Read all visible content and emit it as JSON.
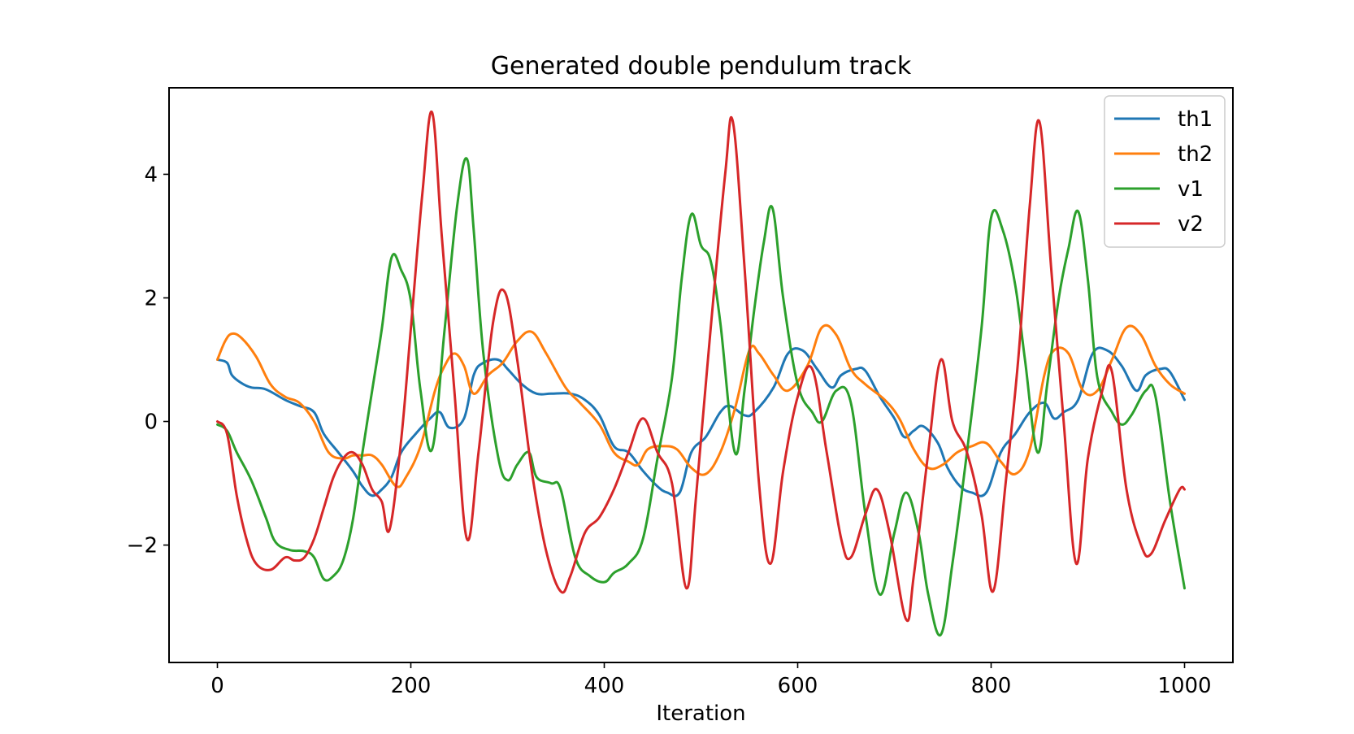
{
  "chart_data": {
    "type": "line",
    "title": "Generated double pendulum track",
    "xlabel": "Iteration",
    "ylabel": "",
    "xlim": [
      -50,
      1050
    ],
    "ylim": [
      -3.9,
      5.4
    ],
    "xticks": [
      0,
      200,
      400,
      600,
      800,
      1000
    ],
    "yticks": [
      -2,
      0,
      2,
      4
    ],
    "ytick_labels": [
      "−2",
      "0",
      "2",
      "4"
    ],
    "grid": false,
    "legend_position": "top-right",
    "series": [
      {
        "name": "th1",
        "color": "#1f77b4",
        "points": [
          [
            0,
            1.0
          ],
          [
            10,
            0.95
          ],
          [
            15,
            0.75
          ],
          [
            25,
            0.62
          ],
          [
            35,
            0.55
          ],
          [
            50,
            0.52
          ],
          [
            70,
            0.35
          ],
          [
            85,
            0.25
          ],
          [
            100,
            0.15
          ],
          [
            110,
            -0.2
          ],
          [
            125,
            -0.5
          ],
          [
            140,
            -0.8
          ],
          [
            150,
            -1.05
          ],
          [
            160,
            -1.2
          ],
          [
            170,
            -1.1
          ],
          [
            180,
            -0.9
          ],
          [
            190,
            -0.5
          ],
          [
            205,
            -0.2
          ],
          [
            220,
            0.05
          ],
          [
            230,
            0.15
          ],
          [
            240,
            -0.1
          ],
          [
            255,
            0.05
          ],
          [
            265,
            0.75
          ],
          [
            275,
            0.95
          ],
          [
            290,
            1.0
          ],
          [
            300,
            0.85
          ],
          [
            315,
            0.6
          ],
          [
            330,
            0.45
          ],
          [
            345,
            0.45
          ],
          [
            365,
            0.45
          ],
          [
            380,
            0.35
          ],
          [
            395,
            0.1
          ],
          [
            410,
            -0.4
          ],
          [
            425,
            -0.5
          ],
          [
            440,
            -0.8
          ],
          [
            455,
            -1.05
          ],
          [
            465,
            -1.15
          ],
          [
            478,
            -1.15
          ],
          [
            490,
            -0.5
          ],
          [
            505,
            -0.25
          ],
          [
            520,
            0.15
          ],
          [
            530,
            0.25
          ],
          [
            545,
            0.1
          ],
          [
            555,
            0.15
          ],
          [
            575,
            0.55
          ],
          [
            590,
            1.1
          ],
          [
            605,
            1.15
          ],
          [
            620,
            0.85
          ],
          [
            635,
            0.55
          ],
          [
            645,
            0.75
          ],
          [
            660,
            0.85
          ],
          [
            670,
            0.82
          ],
          [
            685,
            0.4
          ],
          [
            700,
            0.05
          ],
          [
            710,
            -0.25
          ],
          [
            720,
            -0.15
          ],
          [
            730,
            -0.08
          ],
          [
            745,
            -0.35
          ],
          [
            755,
            -0.75
          ],
          [
            768,
            -1.05
          ],
          [
            780,
            -1.15
          ],
          [
            795,
            -1.15
          ],
          [
            810,
            -0.5
          ],
          [
            825,
            -0.2
          ],
          [
            840,
            0.15
          ],
          [
            855,
            0.3
          ],
          [
            865,
            0.05
          ],
          [
            875,
            0.15
          ],
          [
            890,
            0.35
          ],
          [
            905,
            1.1
          ],
          [
            920,
            1.15
          ],
          [
            935,
            0.9
          ],
          [
            950,
            0.5
          ],
          [
            960,
            0.75
          ],
          [
            975,
            0.85
          ],
          [
            985,
            0.8
          ],
          [
            1000,
            0.35
          ]
        ]
      },
      {
        "name": "th2",
        "color": "#ff7f0e",
        "points": [
          [
            0,
            1.0
          ],
          [
            8,
            1.3
          ],
          [
            15,
            1.42
          ],
          [
            25,
            1.35
          ],
          [
            40,
            1.05
          ],
          [
            55,
            0.6
          ],
          [
            70,
            0.4
          ],
          [
            85,
            0.3
          ],
          [
            100,
            0.0
          ],
          [
            115,
            -0.5
          ],
          [
            130,
            -0.6
          ],
          [
            140,
            -0.55
          ],
          [
            150,
            -0.55
          ],
          [
            160,
            -0.55
          ],
          [
            170,
            -0.7
          ],
          [
            185,
            -1.05
          ],
          [
            195,
            -0.9
          ],
          [
            210,
            -0.4
          ],
          [
            225,
            0.5
          ],
          [
            235,
            0.9
          ],
          [
            245,
            1.1
          ],
          [
            255,
            0.9
          ],
          [
            265,
            0.45
          ],
          [
            280,
            0.75
          ],
          [
            295,
            0.95
          ],
          [
            310,
            1.3
          ],
          [
            325,
            1.45
          ],
          [
            340,
            1.1
          ],
          [
            360,
            0.55
          ],
          [
            375,
            0.3
          ],
          [
            395,
            -0.05
          ],
          [
            410,
            -0.5
          ],
          [
            425,
            -0.65
          ],
          [
            435,
            -0.7
          ],
          [
            445,
            -0.45
          ],
          [
            460,
            -0.4
          ],
          [
            475,
            -0.45
          ],
          [
            490,
            -0.75
          ],
          [
            505,
            -0.85
          ],
          [
            520,
            -0.5
          ],
          [
            535,
            0.2
          ],
          [
            550,
            1.15
          ],
          [
            560,
            1.1
          ],
          [
            575,
            0.75
          ],
          [
            590,
            0.5
          ],
          [
            610,
            0.9
          ],
          [
            625,
            1.52
          ],
          [
            640,
            1.4
          ],
          [
            655,
            0.85
          ],
          [
            670,
            0.6
          ],
          [
            690,
            0.35
          ],
          [
            705,
            0.05
          ],
          [
            720,
            -0.45
          ],
          [
            735,
            -0.75
          ],
          [
            750,
            -0.7
          ],
          [
            765,
            -0.5
          ],
          [
            780,
            -0.4
          ],
          [
            795,
            -0.35
          ],
          [
            810,
            -0.65
          ],
          [
            825,
            -0.85
          ],
          [
            840,
            -0.45
          ],
          [
            855,
            0.75
          ],
          [
            865,
            1.15
          ],
          [
            880,
            1.1
          ],
          [
            895,
            0.5
          ],
          [
            910,
            0.5
          ],
          [
            925,
            1.0
          ],
          [
            940,
            1.52
          ],
          [
            955,
            1.4
          ],
          [
            970,
            0.9
          ],
          [
            985,
            0.6
          ],
          [
            1000,
            0.45
          ]
        ]
      },
      {
        "name": "v1",
        "color": "#2ca02c",
        "points": [
          [
            0,
            -0.05
          ],
          [
            10,
            -0.15
          ],
          [
            20,
            -0.5
          ],
          [
            35,
            -0.95
          ],
          [
            50,
            -1.55
          ],
          [
            60,
            -1.95
          ],
          [
            75,
            -2.08
          ],
          [
            90,
            -2.1
          ],
          [
            100,
            -2.2
          ],
          [
            110,
            -2.55
          ],
          [
            120,
            -2.5
          ],
          [
            130,
            -2.25
          ],
          [
            140,
            -1.6
          ],
          [
            150,
            -0.5
          ],
          [
            160,
            0.5
          ],
          [
            170,
            1.5
          ],
          [
            180,
            2.65
          ],
          [
            190,
            2.45
          ],
          [
            200,
            1.95
          ],
          [
            210,
            0.5
          ],
          [
            222,
            -0.45
          ],
          [
            235,
            1.5
          ],
          [
            248,
            3.5
          ],
          [
            258,
            4.25
          ],
          [
            265,
            3.1
          ],
          [
            275,
            1.1
          ],
          [
            290,
            -0.55
          ],
          [
            300,
            -0.95
          ],
          [
            310,
            -0.7
          ],
          [
            322,
            -0.5
          ],
          [
            330,
            -0.9
          ],
          [
            345,
            -1.0
          ],
          [
            355,
            -1.1
          ],
          [
            370,
            -2.2
          ],
          [
            385,
            -2.5
          ],
          [
            400,
            -2.6
          ],
          [
            410,
            -2.45
          ],
          [
            425,
            -2.3
          ],
          [
            440,
            -1.9
          ],
          [
            455,
            -0.6
          ],
          [
            470,
            0.7
          ],
          [
            480,
            2.3
          ],
          [
            490,
            3.35
          ],
          [
            500,
            2.85
          ],
          [
            510,
            2.6
          ],
          [
            520,
            1.6
          ],
          [
            535,
            -0.5
          ],
          [
            545,
            0.5
          ],
          [
            555,
            1.8
          ],
          [
            565,
            2.9
          ],
          [
            574,
            3.45
          ],
          [
            585,
            2.0
          ],
          [
            600,
            0.6
          ],
          [
            615,
            0.15
          ],
          [
            625,
            0.0
          ],
          [
            640,
            0.5
          ],
          [
            655,
            0.3
          ],
          [
            670,
            -1.5
          ],
          [
            685,
            -2.8
          ],
          [
            700,
            -1.8
          ],
          [
            712,
            -1.15
          ],
          [
            725,
            -1.8
          ],
          [
            735,
            -2.8
          ],
          [
            748,
            -3.45
          ],
          [
            760,
            -2.3
          ],
          [
            775,
            -0.5
          ],
          [
            790,
            1.5
          ],
          [
            800,
            3.3
          ],
          [
            812,
            3.1
          ],
          [
            825,
            2.2
          ],
          [
            835,
            1.0
          ],
          [
            848,
            -0.5
          ],
          [
            858,
            0.6
          ],
          [
            870,
            2.0
          ],
          [
            880,
            2.8
          ],
          [
            890,
            3.4
          ],
          [
            900,
            2.3
          ],
          [
            910,
            0.7
          ],
          [
            925,
            0.15
          ],
          [
            935,
            -0.05
          ],
          [
            945,
            0.1
          ],
          [
            960,
            0.5
          ],
          [
            970,
            0.4
          ],
          [
            985,
            -1.3
          ],
          [
            1000,
            -2.7
          ]
        ]
      },
      {
        "name": "v2",
        "color": "#d62728",
        "points": [
          [
            0,
            0.0
          ],
          [
            10,
            -0.2
          ],
          [
            20,
            -1.2
          ],
          [
            30,
            -1.9
          ],
          [
            40,
            -2.3
          ],
          [
            55,
            -2.4
          ],
          [
            70,
            -2.2
          ],
          [
            80,
            -2.25
          ],
          [
            90,
            -2.2
          ],
          [
            100,
            -1.9
          ],
          [
            110,
            -1.4
          ],
          [
            120,
            -0.9
          ],
          [
            130,
            -0.6
          ],
          [
            140,
            -0.5
          ],
          [
            150,
            -0.7
          ],
          [
            160,
            -1.1
          ],
          [
            170,
            -1.3
          ],
          [
            178,
            -1.75
          ],
          [
            190,
            -0.3
          ],
          [
            200,
            1.5
          ],
          [
            212,
            3.7
          ],
          [
            222,
            5.0
          ],
          [
            232,
            3.0
          ],
          [
            245,
            0.5
          ],
          [
            258,
            -1.9
          ],
          [
            270,
            -0.5
          ],
          [
            285,
            1.6
          ],
          [
            297,
            2.1
          ],
          [
            310,
            1.0
          ],
          [
            325,
            -0.8
          ],
          [
            340,
            -2.1
          ],
          [
            355,
            -2.75
          ],
          [
            365,
            -2.5
          ],
          [
            380,
            -1.8
          ],
          [
            395,
            -1.55
          ],
          [
            410,
            -1.1
          ],
          [
            425,
            -0.5
          ],
          [
            440,
            0.05
          ],
          [
            455,
            -0.5
          ],
          [
            470,
            -1.0
          ],
          [
            485,
            -2.7
          ],
          [
            495,
            -1.2
          ],
          [
            510,
            1.5
          ],
          [
            525,
            4.0
          ],
          [
            533,
            4.85
          ],
          [
            545,
            2.5
          ],
          [
            560,
            -1.0
          ],
          [
            572,
            -2.3
          ],
          [
            585,
            -0.8
          ],
          [
            600,
            0.4
          ],
          [
            615,
            0.85
          ],
          [
            630,
            -0.5
          ],
          [
            645,
            -1.9
          ],
          [
            655,
            -2.2
          ],
          [
            670,
            -1.5
          ],
          [
            682,
            -1.1
          ],
          [
            695,
            -1.8
          ],
          [
            712,
            -3.2
          ],
          [
            720,
            -2.5
          ],
          [
            735,
            -0.5
          ],
          [
            748,
            1.0
          ],
          [
            760,
            0.0
          ],
          [
            775,
            -0.5
          ],
          [
            790,
            -1.5
          ],
          [
            802,
            -2.75
          ],
          [
            815,
            -1.0
          ],
          [
            828,
            1.0
          ],
          [
            840,
            3.5
          ],
          [
            850,
            4.85
          ],
          [
            862,
            2.5
          ],
          [
            875,
            0.0
          ],
          [
            888,
            -2.3
          ],
          [
            900,
            -0.6
          ],
          [
            915,
            0.5
          ],
          [
            925,
            0.8
          ],
          [
            940,
            -1.1
          ],
          [
            955,
            -2.0
          ],
          [
            965,
            -2.15
          ],
          [
            980,
            -1.6
          ],
          [
            995,
            -1.1
          ],
          [
            1000,
            -1.1
          ]
        ]
      }
    ]
  }
}
